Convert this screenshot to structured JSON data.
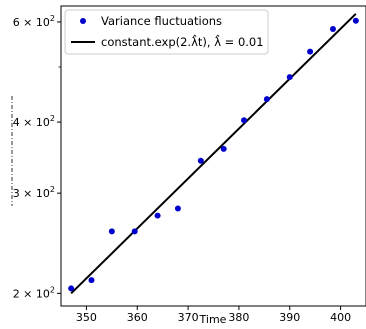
{
  "chart_data": {
    "type": "scatter",
    "xlabel": "Time",
    "ylabel": "",
    "xlim": [
      345,
      405
    ],
    "ylim_log": [
      190,
      640
    ],
    "y_scale": "log",
    "xticks": [
      350,
      360,
      370,
      380,
      390,
      400
    ],
    "xtick_labels": [
      "350",
      "360",
      "370",
      "380",
      "390",
      "400"
    ],
    "yticks": [
      200,
      300,
      400,
      600
    ],
    "ytick_labels": [
      {
        "base": "2 × 10",
        "exp": "2"
      },
      {
        "base": "3 × 10",
        "exp": "2"
      },
      {
        "base": "4 × 10",
        "exp": "2"
      },
      {
        "base": "6 × 10",
        "exp": "2"
      }
    ],
    "legend_position": "top-left",
    "series": [
      {
        "name": "Variance fluctuations",
        "kind": "points",
        "color": "#0000cc",
        "x": [
          347,
          351,
          355,
          359.5,
          364,
          368,
          372.5,
          377,
          381,
          385.5,
          390,
          394,
          398.5,
          403
        ],
        "y": [
          204,
          211,
          257,
          257,
          274,
          282,
          342,
          359,
          403,
          439,
          480,
          532,
          583,
          603
        ]
      },
      {
        "name": "constant.exp(2.λ̂t), λ̂ = 0.01",
        "kind": "line",
        "color": "#000000",
        "x": [
          347,
          403
        ],
        "y": [
          200,
          620
        ]
      }
    ]
  }
}
